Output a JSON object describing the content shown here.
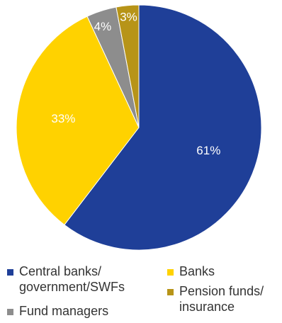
{
  "chart_data": {
    "type": "pie",
    "title": "",
    "slices": [
      {
        "label": "Central banks/\ngovernment/SWFs",
        "value": 61,
        "display": "61%",
        "color": "#1f3f98",
        "text_color": "#ffffff"
      },
      {
        "label": "Banks",
        "value": 33,
        "display": "33%",
        "color": "#ffd200",
        "text_color": "#ffffff"
      },
      {
        "label": "Fund managers",
        "value": 4,
        "display": "4%",
        "color": "#8d8d8d",
        "text_color": "#ffffff"
      },
      {
        "label": "Pension funds/\ninsurance",
        "value": 3,
        "display": "3%",
        "color": "#b79418",
        "text_color": "#ffffff"
      }
    ],
    "start_angle_deg": 0,
    "direction": "clockwise",
    "legend_position": "bottom"
  }
}
